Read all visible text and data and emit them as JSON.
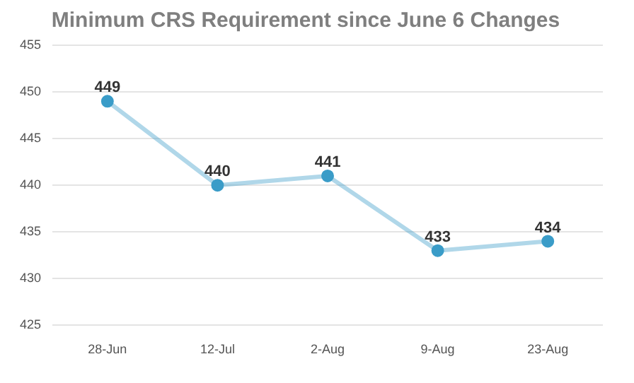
{
  "chart_data": {
    "type": "line",
    "title": "Minimum CRS Requirement since June 6 Changes",
    "categories": [
      "28-Jun",
      "12-Jul",
      "2-Aug",
      "9-Aug",
      "23-Aug"
    ],
    "series": [
      {
        "color": "#3a9cc8",
        "values": [
          449,
          440,
          441,
          433,
          434
        ]
      }
    ],
    "ylim": [
      425,
      455
    ],
    "yticks": [
      425,
      430,
      435,
      440,
      445,
      450,
      455
    ],
    "grid": "y",
    "marker": "circle",
    "data_labels": true,
    "legend": false
  }
}
